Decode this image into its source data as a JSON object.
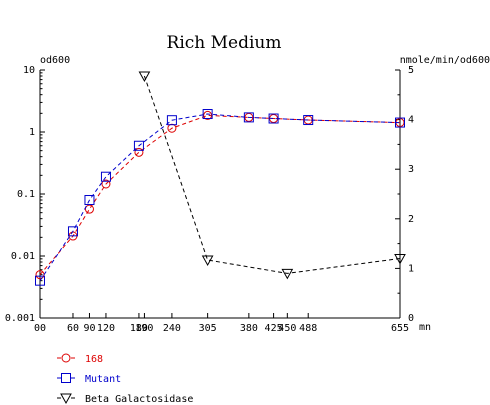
{
  "chart_data": {
    "type": "line",
    "title": "Rich Medium",
    "left_axis": {
      "label": "od600",
      "scale": "log",
      "range": [
        0.001,
        10
      ],
      "ticks": [
        10,
        1,
        0.1,
        0.01,
        0.001
      ],
      "tick_labels": [
        "10",
        "1",
        "0.1",
        "0.01",
        "0.001"
      ]
    },
    "right_axis": {
      "label": "nmole/min/od600",
      "scale": "linear",
      "range": [
        0,
        5
      ],
      "ticks": [
        0,
        1,
        2,
        3,
        4,
        5
      ],
      "tick_labels": [
        "0",
        "1",
        "2",
        "3",
        "4",
        "5"
      ]
    },
    "x_axis": {
      "unit": "mn",
      "range": [
        0,
        655
      ],
      "ticks": [
        0,
        60,
        90,
        120,
        180,
        190,
        240,
        305,
        380,
        425,
        450,
        488,
        655
      ],
      "tick_labels": [
        "00",
        "60",
        "90",
        "120",
        "180",
        "190",
        "240",
        "305",
        "380",
        "425",
        "450",
        "488",
        "655"
      ]
    },
    "series": [
      {
        "name": "168",
        "axis": "left",
        "color": "#dd0000",
        "marker": "circle",
        "points": [
          [
            0,
            0.005
          ],
          [
            60,
            0.021
          ],
          [
            90,
            0.057
          ],
          [
            120,
            0.145
          ],
          [
            180,
            0.47
          ],
          [
            240,
            1.15
          ],
          [
            305,
            1.85
          ],
          [
            380,
            1.72
          ],
          [
            425,
            1.65
          ],
          [
            488,
            1.56
          ],
          [
            655,
            1.42
          ]
        ]
      },
      {
        "name": "Mutant",
        "axis": "left",
        "color": "#0000cc",
        "marker": "square",
        "points": [
          [
            0,
            0.004
          ],
          [
            60,
            0.025
          ],
          [
            90,
            0.08
          ],
          [
            120,
            0.19
          ],
          [
            180,
            0.6
          ],
          [
            240,
            1.55
          ],
          [
            305,
            1.95
          ],
          [
            380,
            1.72
          ],
          [
            425,
            1.65
          ],
          [
            488,
            1.56
          ],
          [
            655,
            1.42
          ]
        ]
      },
      {
        "name": "Beta Galactosidase",
        "axis": "right",
        "color": "#000000",
        "marker": "triangle-down",
        "points": [
          [
            190,
            4.88
          ],
          [
            305,
            1.17
          ],
          [
            450,
            0.9
          ],
          [
            655,
            1.2
          ]
        ]
      }
    ],
    "legend_position": "bottom-left",
    "grid": false
  }
}
